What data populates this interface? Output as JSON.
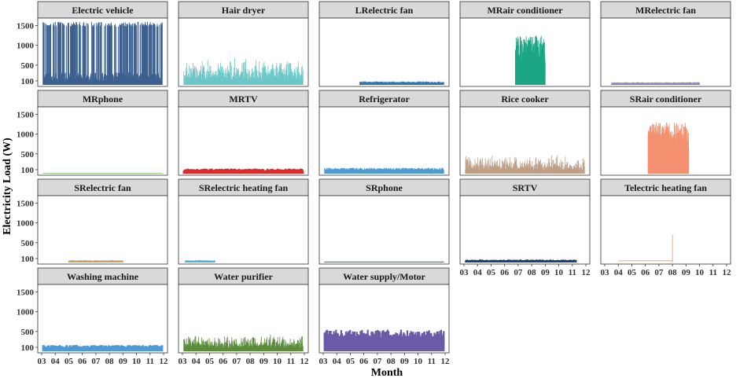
{
  "chart_data": {
    "type": "line",
    "facet_layout": "4 rows x 5 columns (last row has 3 panels)",
    "xlabel": "Month",
    "ylabel": "Electricity Load (W)",
    "x_ticks": [
      "03",
      "04",
      "05",
      "06",
      "07",
      "08",
      "09",
      "10",
      "11",
      "12"
    ],
    "y_ticks": [
      100,
      500,
      1000,
      1500
    ],
    "ylim": [
      0,
      1650
    ],
    "xlim": [
      3,
      12
    ],
    "grid": false,
    "panels": [
      {
        "name": "Electric vehicle",
        "color": "#3b5f8f",
        "pattern": "ev",
        "approx_range_w": [
          0,
          1600
        ],
        "active": [
          [
            3.1,
            11.9
          ]
        ]
      },
      {
        "name": "Hair dryer",
        "color": "#6cc8c8",
        "pattern": "spiky",
        "approx_range_w": [
          0,
          900
        ],
        "active": [
          [
            3.1,
            11.9
          ]
        ]
      },
      {
        "name": "LRelectric fan",
        "color": "#2e77b5",
        "pattern": "flat",
        "approx_range_w": [
          0,
          90
        ],
        "active": [
          [
            5.7,
            11.9
          ]
        ]
      },
      {
        "name": "MRair conditioner",
        "color": "#1aa585",
        "pattern": "dense",
        "approx_range_w": [
          0,
          1250
        ],
        "active": [
          [
            6.8,
            9.0
          ]
        ]
      },
      {
        "name": "MRelectric fan",
        "color": "#8b87c7",
        "pattern": "flat",
        "approx_range_w": [
          0,
          70
        ],
        "active": [
          [
            3.5,
            10.0
          ]
        ]
      },
      {
        "name": "MRphone",
        "color": "#9ccc8c",
        "pattern": "flat",
        "approx_range_w": [
          0,
          20
        ],
        "active": [
          [
            3.1,
            11.9
          ]
        ]
      },
      {
        "name": "MRTV",
        "color": "#e02a2a",
        "pattern": "block",
        "approx_range_w": [
          0,
          130
        ],
        "active": [
          [
            3.1,
            10.5
          ],
          [
            10.6,
            11.9
          ]
        ]
      },
      {
        "name": "Refrigerator",
        "color": "#4e9ad4",
        "pattern": "fridge",
        "approx_range_w": [
          0,
          250
        ],
        "active": [
          [
            3.1,
            11.9
          ]
        ]
      },
      {
        "name": "Rice cooker",
        "color": "#bfa087",
        "pattern": "spiky",
        "approx_range_w": [
          0,
          650
        ],
        "active": [
          [
            3.1,
            11.9
          ]
        ]
      },
      {
        "name": "SRair conditioner",
        "color": "#f29070",
        "pattern": "dense",
        "approx_range_w": [
          0,
          1300
        ],
        "active": [
          [
            6.2,
            9.2
          ]
        ]
      },
      {
        "name": "SRelectric fan",
        "color": "#c9a066",
        "pattern": "flat",
        "approx_range_w": [
          0,
          60
        ],
        "active": [
          [
            5.0,
            9.0
          ]
        ]
      },
      {
        "name": "SRelectric heating fan",
        "color": "#44b6e0",
        "pattern": "flat",
        "approx_range_w": [
          0,
          60
        ],
        "active": [
          [
            3.2,
            5.4
          ]
        ]
      },
      {
        "name": "SRphone",
        "color": "#2e77b5",
        "pattern": "flat",
        "approx_range_w": [
          0,
          20
        ],
        "active": [
          [
            3.1,
            11.9
          ]
        ]
      },
      {
        "name": "SRTV",
        "color": "#1f3f73",
        "pattern": "flat",
        "approx_range_w": [
          0,
          80
        ],
        "active": [
          [
            3.1,
            11.3
          ]
        ]
      },
      {
        "name": "Telectric heating fan",
        "color": "#f2a880",
        "pattern": "ramp",
        "approx_range_w": [
          0,
          700
        ],
        "active": [
          [
            4.0,
            8.0
          ]
        ]
      },
      {
        "name": "Washing machine",
        "color": "#4e9ad4",
        "pattern": "block",
        "approx_range_w": [
          0,
          160
        ],
        "active": [
          [
            3.1,
            6.8
          ],
          [
            6.8,
            11.9
          ]
        ]
      },
      {
        "name": "Water purifier",
        "color": "#5a8c3a",
        "pattern": "spiky",
        "approx_range_w": [
          0,
          600
        ],
        "active": [
          [
            3.1,
            11.9
          ]
        ]
      },
      {
        "name": "Water supply/Motor",
        "color": "#6a5aa8",
        "pattern": "block",
        "approx_range_w": [
          0,
          550
        ],
        "active": [
          [
            3.1,
            11.9
          ]
        ]
      }
    ]
  }
}
